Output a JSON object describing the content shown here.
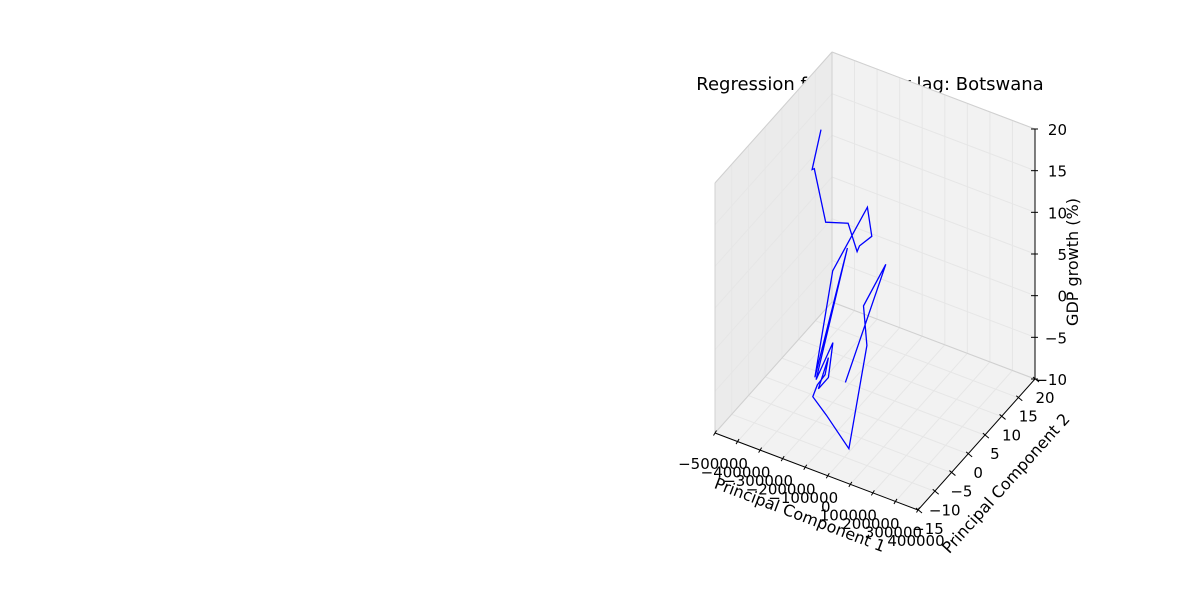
{
  "chart_data": {
    "type": "line",
    "projection": "3d",
    "title": "Regression for one-year lag: Botswana",
    "xlabel": "Principal Component 1",
    "ylabel": "Principal Component 2",
    "zlabel": "GDP growth (%)",
    "xlim": [
      -500000,
      400000
    ],
    "ylim": [
      -15,
      20
    ],
    "zlim": [
      -10,
      20
    ],
    "xticks": [
      -500000,
      -400000,
      -300000,
      -200000,
      -100000,
      0,
      100000,
      200000,
      300000,
      400000
    ],
    "xtick_labels": [
      "−500000",
      "−400000",
      "−300000",
      "−200000",
      "−100000",
      "0",
      "100000",
      "200000",
      "300000",
      "400000"
    ],
    "yticks": [
      -15,
      -10,
      -5,
      0,
      5,
      10,
      15,
      20
    ],
    "ytick_labels": [
      "−15",
      "−10",
      "−5",
      "0",
      "5",
      "10",
      "15",
      "20"
    ],
    "zticks": [
      -10,
      -5,
      0,
      5,
      10,
      15,
      20
    ],
    "ztick_labels": [
      "−10",
      "−5",
      "0",
      "5",
      "10",
      "15",
      "20"
    ],
    "grid": true,
    "line_color": "#0000ff",
    "pane_color": "#f2f2f2",
    "series": [
      {
        "points": [
          [
            -430000,
            12,
            15
          ],
          [
            -440000,
            10,
            11
          ],
          [
            -460000,
            12,
            10
          ],
          [
            -350000,
            8,
            6.5
          ],
          [
            -310000,
            12,
            5
          ],
          [
            -270000,
            12,
            2
          ],
          [
            -230000,
            10,
            4
          ],
          [
            -205000,
            12,
            4.5
          ],
          [
            -195000,
            10,
            9
          ],
          [
            -245000,
            3,
            4
          ],
          [
            -235000,
            -3,
            -6
          ],
          [
            -165000,
            2,
            8
          ],
          [
            -200000,
            -5,
            -5
          ],
          [
            -155000,
            -3,
            -1
          ],
          [
            -190000,
            -2,
            -6
          ],
          [
            -190000,
            -5,
            -6
          ],
          [
            -175000,
            -3,
            -3
          ],
          [
            -160000,
            -5,
            -4
          ],
          [
            -180000,
            -6,
            -5
          ],
          [
            -185000,
            -7,
            -6
          ],
          [
            -110000,
            -8,
            -7
          ],
          [
            -10000,
            -8,
            -10
          ],
          [
            40000,
            -6,
            2
          ],
          [
            10000,
            -5,
            6
          ],
          [
            35000,
            0,
            9
          ],
          [
            -70000,
            -5,
            -4
          ]
        ]
      }
    ]
  }
}
